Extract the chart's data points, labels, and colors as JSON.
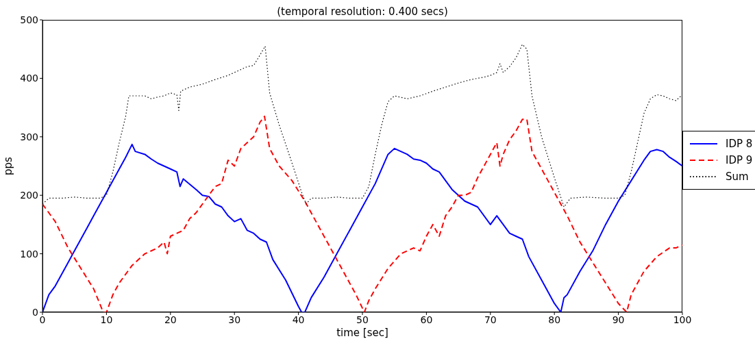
{
  "chart_data": {
    "type": "line",
    "title": "(temporal resolution: 0.400 secs)",
    "xlabel": "time [sec]",
    "ylabel": "pps",
    "xlim": [
      0,
      100
    ],
    "xticks": [
      0,
      10,
      20,
      30,
      40,
      50,
      60,
      70,
      80,
      90,
      100
    ],
    "ylim": [
      0,
      500
    ],
    "yticks": [
      0,
      100,
      200,
      300,
      400,
      500
    ],
    "legend": "right",
    "series": [
      {
        "name": "IDP 8",
        "color": "#0000ff",
        "line_style": "solid",
        "x": [
          0,
          1,
          2,
          3,
          4,
          5,
          6,
          7,
          8,
          9,
          10,
          11,
          12,
          13,
          14,
          14.5,
          16,
          17,
          18,
          19,
          20,
          21,
          21.5,
          22,
          24,
          25,
          26,
          27,
          28,
          29,
          30,
          31,
          32,
          33,
          34,
          35,
          36,
          38,
          40,
          40.5,
          41,
          42,
          44,
          46,
          48,
          50,
          52,
          54,
          55,
          56,
          57,
          58,
          59,
          60,
          61,
          62,
          63,
          64,
          65,
          66,
          67,
          68,
          70,
          71,
          72,
          73,
          74,
          75,
          76,
          78,
          80,
          81,
          81.5,
          82,
          84,
          86,
          88,
          90,
          92,
          94,
          95,
          96,
          97,
          98,
          99,
          100
        ],
        "values": [
          0,
          30,
          45,
          65,
          85,
          105,
          125,
          145,
          165,
          185,
          205,
          225,
          245,
          265,
          287,
          275,
          270,
          262,
          255,
          250,
          245,
          240,
          215,
          228,
          210,
          200,
          198,
          185,
          180,
          165,
          155,
          160,
          140,
          135,
          125,
          120,
          90,
          55,
          10,
          0,
          0,
          25,
          60,
          100,
          140,
          180,
          220,
          270,
          280,
          275,
          270,
          262,
          260,
          255,
          245,
          240,
          225,
          210,
          200,
          190,
          185,
          180,
          150,
          165,
          150,
          135,
          130,
          125,
          95,
          55,
          15,
          0,
          25,
          30,
          70,
          105,
          150,
          190,
          225,
          260,
          275,
          278,
          275,
          265,
          258,
          250
        ]
      },
      {
        "name": "IDP 9",
        "color": "#ff0000",
        "line_style": "dashed",
        "x": [
          0,
          2,
          4,
          6,
          8,
          9.5,
          10,
          11,
          12,
          14,
          16,
          18,
          19,
          19.5,
          20,
          22,
          23,
          24,
          26,
          27,
          28,
          29,
          30,
          31,
          32,
          33,
          34,
          34.7,
          35.5,
          37,
          39,
          41,
          43,
          45,
          47,
          49,
          50.3,
          51,
          52,
          54,
          56,
          58,
          59,
          60,
          61,
          62,
          63,
          64,
          65,
          66,
          67,
          68,
          69,
          70,
          71,
          71.5,
          72,
          73,
          74,
          75,
          75.7,
          76.5,
          78,
          80,
          82,
          84,
          86,
          88,
          90,
          91.3,
          92,
          94,
          96,
          98,
          99,
          100
        ],
        "values": [
          185,
          155,
          110,
          75,
          40,
          0,
          0,
          30,
          50,
          80,
          100,
          110,
          120,
          100,
          130,
          140,
          160,
          170,
          200,
          215,
          220,
          260,
          250,
          280,
          290,
          300,
          325,
          335,
          280,
          250,
          225,
          190,
          150,
          110,
          70,
          30,
          0,
          20,
          40,
          75,
          100,
          110,
          105,
          130,
          150,
          130,
          165,
          180,
          200,
          200,
          205,
          230,
          250,
          270,
          290,
          250,
          270,
          295,
          310,
          330,
          330,
          275,
          245,
          205,
          165,
          120,
          85,
          50,
          15,
          0,
          30,
          70,
          95,
          110,
          110,
          115
        ]
      },
      {
        "name": "Sum",
        "color": "#000000",
        "line_style": "dotted",
        "x": [
          0,
          1,
          3,
          5,
          7,
          9,
          10,
          11,
          12,
          13,
          13.5,
          14,
          16,
          17,
          18,
          19,
          20,
          21,
          21.3,
          21.6,
          23,
          25,
          27,
          29,
          30,
          31,
          32,
          33,
          34,
          34.8,
          35.5,
          37,
          39,
          40.5,
          41.2,
          42,
          44,
          46,
          48,
          50,
          51,
          52,
          53,
          54,
          55,
          57,
          59,
          61,
          63,
          65,
          67,
          69,
          70,
          71,
          71.5,
          72,
          73,
          74,
          75,
          75.7,
          76.5,
          78,
          80,
          81.5,
          82.5,
          85,
          88,
          90,
          91,
          92,
          93,
          94,
          95,
          96,
          97,
          98,
          99,
          100
        ],
        "values": [
          185,
          195,
          195,
          197,
          195,
          195,
          200,
          240,
          290,
          335,
          370,
          370,
          370,
          365,
          368,
          370,
          375,
          372,
          345,
          378,
          385,
          390,
          398,
          405,
          410,
          415,
          420,
          422,
          440,
          455,
          375,
          320,
          255,
          205,
          185,
          195,
          195,
          197,
          195,
          195,
          215,
          270,
          320,
          360,
          370,
          365,
          370,
          378,
          385,
          392,
          398,
          402,
          405,
          410,
          425,
          410,
          420,
          435,
          458,
          450,
          370,
          300,
          230,
          180,
          195,
          197,
          195,
          195,
          200,
          240,
          290,
          340,
          365,
          372,
          370,
          365,
          362,
          372
        ]
      }
    ]
  }
}
